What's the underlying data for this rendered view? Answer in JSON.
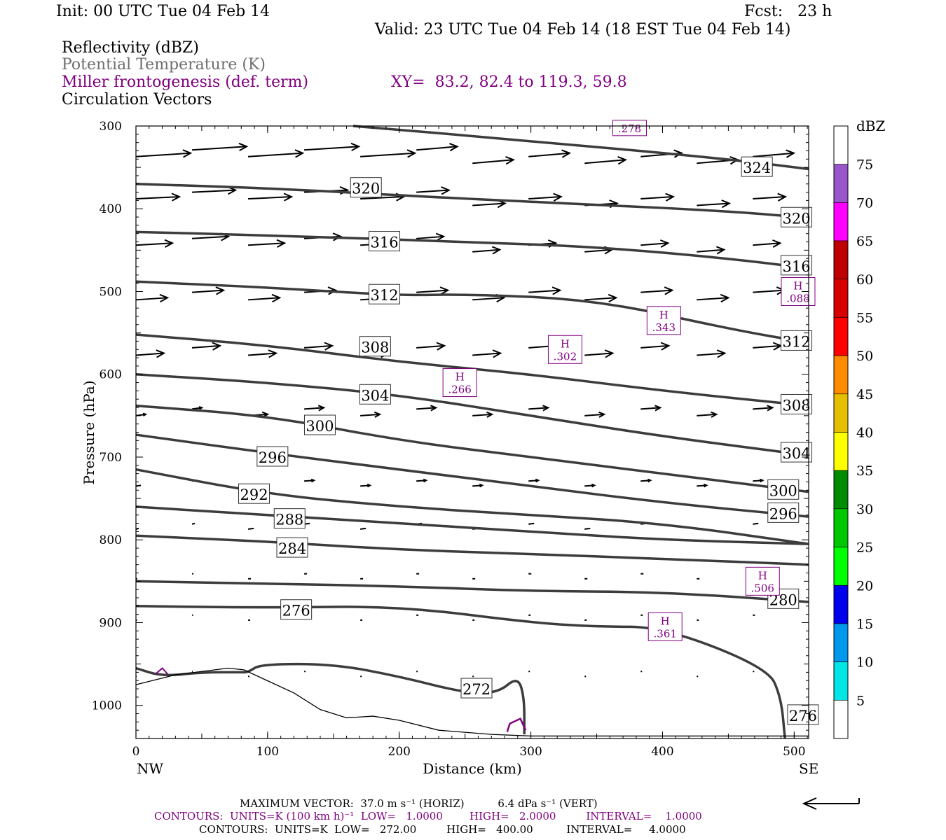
{
  "header": {
    "init": "Init: 00 UTC Tue 04 Feb 14",
    "fcst": "Fcst:   23 h",
    "valid": "Valid: 23 UTC Tue 04 Feb 14 (18 EST Tue 04 Feb 14)"
  },
  "legend": {
    "field1": "Reflectivity (dBZ)",
    "field2": "Potential Temperature (K)",
    "field3": "Miller frontogenesis (def. term)",
    "xy": "XY=  83.2, 82.4 to 119.3, 59.8",
    "field4": "Circulation Vectors"
  },
  "footer": {
    "max_vector": "MAXIMUM VECTOR:  37.0 m s⁻¹ (HORIZ)          6.4 dPa s⁻¹ (VERT)",
    "contours_purple": "CONTOURS:  UNITS=K (100 km h)⁻¹  LOW=   1.0000        HIGH=   2.0000         INTERVAL=    1.0000",
    "contours_black": "CONTOURS:  UNITS=K  LOW=   272.00         HIGH=   400.00          INTERVAL=     4.0000"
  },
  "chart_data": {
    "type": "line",
    "xlabel": "Distance (km)",
    "ylabel": "Pressure (hPa)",
    "xlim": [
      0,
      511
    ],
    "ylim": [
      1040,
      300
    ],
    "x_ticks": [
      0,
      100,
      200,
      300,
      400,
      500
    ],
    "y_ticks": [
      300,
      400,
      500,
      600,
      700,
      800,
      900,
      1000
    ],
    "x_end_labels": [
      "NW",
      "SE"
    ],
    "colorbar": {
      "title": "dBZ",
      "levels": [
        "5",
        "10",
        "15",
        "20",
        "25",
        "30",
        "35",
        "40",
        "45",
        "50",
        "55",
        "60",
        "65",
        "70",
        "75"
      ],
      "colors": [
        "#ffffff",
        "#00e5e5",
        "#0099ee",
        "#0000ee",
        "#00ff00",
        "#00c800",
        "#008c00",
        "#ffff00",
        "#e6bf00",
        "#ff8c00",
        "#ff0000",
        "#d60000",
        "#bf0000",
        "#ff00ff",
        "#9955cc",
        "#ffffff"
      ]
    },
    "theta_contours": [
      {
        "label": "324",
        "x": [
          165,
          300,
          450,
          511
        ],
        "y": [
          300,
          318,
          340,
          352
        ],
        "lx": 460,
        "ly": 350
      },
      {
        "label": "320",
        "x": [
          0,
          100,
          250,
          350,
          450,
          511
        ],
        "y": [
          370,
          375,
          388,
          395,
          403,
          411
        ],
        "lx": 163,
        "ly": 375,
        "lx2": 490,
        "ly2": 411
      },
      {
        "label": "316",
        "x": [
          0,
          100,
          250,
          350,
          450,
          511
        ],
        "y": [
          428,
          432,
          440,
          446,
          460,
          472
        ],
        "lx": 177,
        "ly": 440,
        "lx2": 490,
        "ly2": 469
      },
      {
        "label": "312",
        "x": [
          0,
          100,
          200,
          250,
          350,
          450,
          511
        ],
        "y": [
          488,
          495,
          505,
          503,
          510,
          545,
          562
        ],
        "lx": 177,
        "ly": 504,
        "lx2": 490,
        "ly2": 560
      },
      {
        "label": "308",
        "x": [
          0,
          100,
          200,
          300,
          400,
          511
        ],
        "y": [
          552,
          565,
          585,
          600,
          620,
          638
        ],
        "lx": 170,
        "ly": 567,
        "lx2": 490,
        "ly2": 637
      },
      {
        "label": "304",
        "x": [
          0,
          100,
          200,
          300,
          400,
          511
        ],
        "y": [
          600,
          610,
          625,
          650,
          675,
          698
        ],
        "lx": 170,
        "ly": 625,
        "lx2": 490,
        "ly2": 695
      },
      {
        "label": "300",
        "x": [
          0,
          100,
          200,
          300,
          400,
          511
        ],
        "y": [
          638,
          650,
          680,
          700,
          720,
          742
        ],
        "lx": 128,
        "ly": 662,
        "lx2": 480,
        "ly2": 740
      },
      {
        "label": "296",
        "x": [
          0,
          100,
          200,
          300,
          400,
          511
        ],
        "y": [
          673,
          695,
          715,
          735,
          755,
          772
        ],
        "lx": 92,
        "ly": 700,
        "lx2": 480,
        "ly2": 768
      },
      {
        "label": "292",
        "x": [
          0,
          100,
          200,
          300,
          400,
          511
        ],
        "y": [
          715,
          745,
          760,
          770,
          780,
          805
        ],
        "lx": 78,
        "ly": 745
      },
      {
        "label": "288",
        "x": [
          0,
          100,
          200,
          300,
          400,
          511
        ],
        "y": [
          760,
          770,
          780,
          790,
          800,
          805
        ],
        "lx": 105,
        "ly": 775
      },
      {
        "label": "284",
        "x": [
          0,
          100,
          200,
          300,
          400,
          511
        ],
        "y": [
          795,
          802,
          812,
          817,
          823,
          830
        ],
        "lx": 107,
        "ly": 810
      },
      {
        "label": "280",
        "x": [
          0,
          100,
          200,
          300,
          400,
          511
        ],
        "y": [
          850,
          853,
          856,
          862,
          863,
          875
        ],
        "lx": 480,
        "ly": 872
      },
      {
        "label": "276",
        "x": [
          0,
          100,
          200,
          300,
          350,
          400,
          480,
          490,
          493
        ],
        "y": [
          880,
          882,
          880,
          900,
          905,
          905,
          955,
          990,
          1040
        ],
        "lx": 110,
        "ly": 885,
        "lx2": 495,
        "ly2": 1012
      },
      {
        "label": "272",
        "x": [
          0,
          20,
          50,
          80,
          85,
          95,
          150,
          200,
          250,
          275,
          290,
          295,
          295
        ],
        "y": [
          955,
          965,
          960,
          960,
          960,
          950,
          950,
          965,
          985,
          985,
          965,
          990,
          1035
        ],
        "lx": 247,
        "ly": 980
      }
    ],
    "frontogenesis_maxima": [
      {
        "label": "H",
        "value": ".266",
        "x": 246,
        "y": 610
      },
      {
        "label": "H",
        "value": ".302",
        "x": 326,
        "y": 570
      },
      {
        "label": "H",
        "value": ".343",
        "x": 401,
        "y": 535
      },
      {
        "label": "H",
        "value": ".088",
        "x": 503,
        "y": 500
      },
      {
        "label": "H",
        "value": ".506",
        "x": 476,
        "y": 850
      },
      {
        "label": "H",
        "value": ".361",
        "x": 402,
        "y": 905
      },
      {
        "label": "",
        "value": ".278",
        "x": 375,
        "y": 310
      }
    ]
  }
}
